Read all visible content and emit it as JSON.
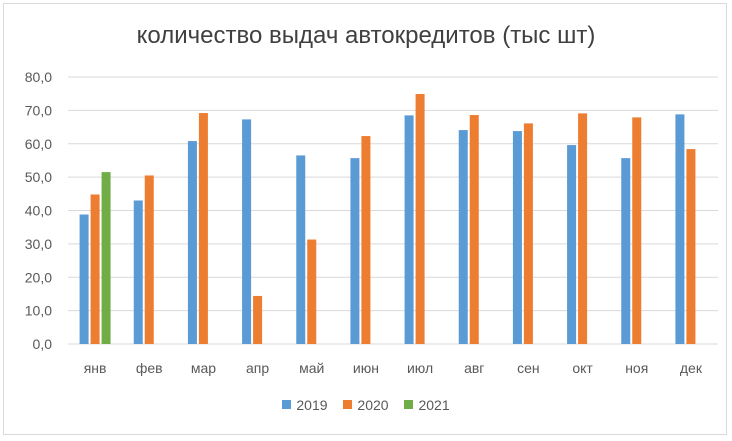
{
  "chart_data": {
    "type": "bar",
    "title": "количество выдач автокредитов (тыс шт)",
    "xlabel": "",
    "ylabel": "",
    "ylim": [
      0,
      80
    ],
    "yticks": [
      "0,0",
      "10,0",
      "20,0",
      "30,0",
      "40,0",
      "50,0",
      "60,0",
      "70,0",
      "80,0"
    ],
    "grid": true,
    "legend_position": "bottom",
    "categories": [
      "янв",
      "фев",
      "мар",
      "апр",
      "май",
      "июн",
      "июл",
      "авг",
      "сен",
      "окт",
      "ноя",
      "дек"
    ],
    "series": [
      {
        "name": "2019",
        "color": "#5b9bd5",
        "values": [
          38.8,
          43.0,
          60.8,
          67.3,
          56.5,
          55.7,
          68.5,
          64.1,
          63.8,
          59.6,
          55.7,
          68.8
        ]
      },
      {
        "name": "2020",
        "color": "#ed7d31",
        "values": [
          44.8,
          50.5,
          69.2,
          14.4,
          31.3,
          62.3,
          74.9,
          68.6,
          66.1,
          69.1,
          67.9,
          58.4
        ]
      },
      {
        "name": "2021",
        "color": "#70ad47",
        "values": [
          51.5,
          null,
          null,
          null,
          null,
          null,
          null,
          null,
          null,
          null,
          null,
          null
        ]
      }
    ]
  }
}
